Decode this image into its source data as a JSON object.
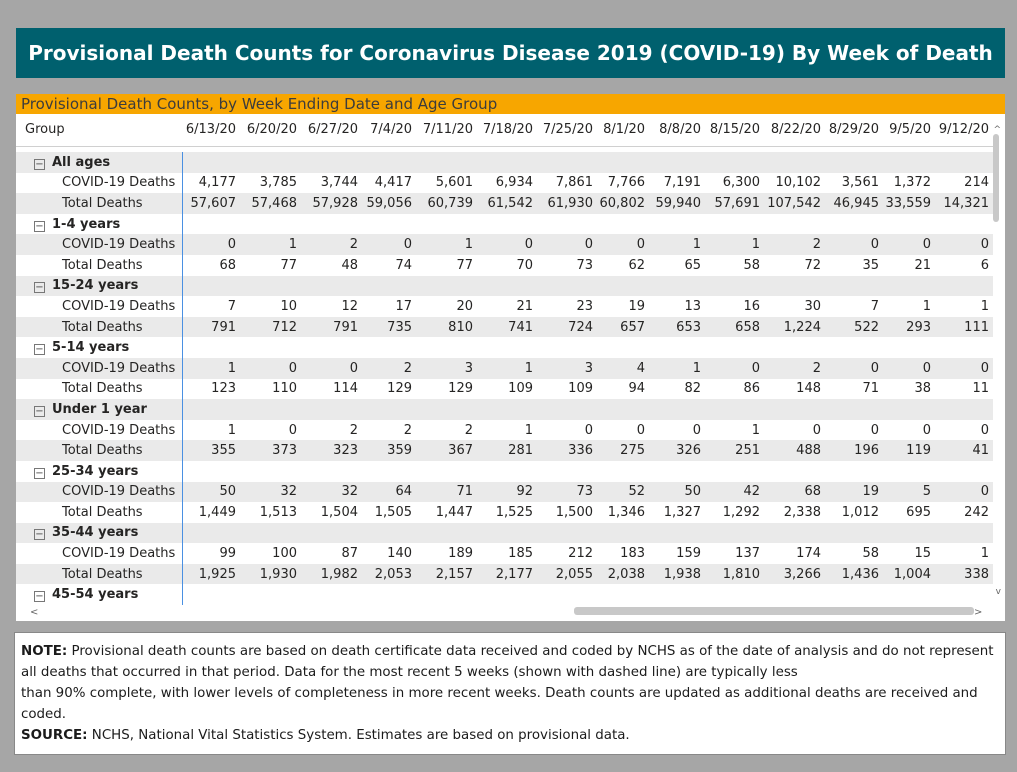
{
  "banner": {
    "title": "Provisional Death Counts for Coronavirus Disease 2019 (COVID-19) By Week of Death"
  },
  "panel": {
    "title": "Provisional Death Counts, by Week Ending Date and Age Group",
    "group_header": "Group",
    "weeks": [
      "6/13/20",
      "6/20/20",
      "6/27/20",
      "7/4/20",
      "7/11/20",
      "7/18/20",
      "7/25/20",
      "8/1/20",
      "8/8/20",
      "8/15/20",
      "8/22/20",
      "8/29/20",
      "9/5/20",
      "9/12/20"
    ],
    "groups": [
      {
        "name": "All ages",
        "toggle": "⊟",
        "rows": [
          {
            "label": "COVID-19 Deaths",
            "values": [
              "4,177",
              "3,785",
              "3,744",
              "4,417",
              "5,601",
              "6,934",
              "7,861",
              "7,766",
              "7,191",
              "6,300",
              "10,102",
              "3,561",
              "1,372",
              "214"
            ]
          },
          {
            "label": "Total Deaths",
            "values": [
              "57,607",
              "57,468",
              "57,928",
              "59,056",
              "60,739",
              "61,542",
              "61,930",
              "60,802",
              "59,940",
              "57,691",
              "107,542",
              "46,945",
              "33,559",
              "14,321"
            ]
          }
        ]
      },
      {
        "name": "1-4 years",
        "toggle": "⊟",
        "rows": [
          {
            "label": "COVID-19 Deaths",
            "values": [
              "0",
              "1",
              "2",
              "0",
              "1",
              "0",
              "0",
              "0",
              "1",
              "1",
              "2",
              "0",
              "0",
              "0"
            ]
          },
          {
            "label": "Total Deaths",
            "values": [
              "68",
              "77",
              "48",
              "74",
              "77",
              "70",
              "73",
              "62",
              "65",
              "58",
              "72",
              "35",
              "21",
              "6"
            ]
          }
        ]
      },
      {
        "name": "15-24 years",
        "toggle": "⊟",
        "rows": [
          {
            "label": "COVID-19 Deaths",
            "values": [
              "7",
              "10",
              "12",
              "17",
              "20",
              "21",
              "23",
              "19",
              "13",
              "16",
              "30",
              "7",
              "1",
              "1"
            ]
          },
          {
            "label": "Total Deaths",
            "values": [
              "791",
              "712",
              "791",
              "735",
              "810",
              "741",
              "724",
              "657",
              "653",
              "658",
              "1,224",
              "522",
              "293",
              "111"
            ]
          }
        ]
      },
      {
        "name": "5-14 years",
        "toggle": "⊟",
        "rows": [
          {
            "label": "COVID-19 Deaths",
            "values": [
              "1",
              "0",
              "0",
              "2",
              "3",
              "1",
              "3",
              "4",
              "1",
              "0",
              "2",
              "0",
              "0",
              "0"
            ]
          },
          {
            "label": "Total Deaths",
            "values": [
              "123",
              "110",
              "114",
              "129",
              "129",
              "109",
              "109",
              "94",
              "82",
              "86",
              "148",
              "71",
              "38",
              "11"
            ]
          }
        ]
      },
      {
        "name": "Under 1 year",
        "toggle": "⊟",
        "rows": [
          {
            "label": "COVID-19 Deaths",
            "values": [
              "1",
              "0",
              "2",
              "2",
              "2",
              "1",
              "0",
              "0",
              "0",
              "1",
              "0",
              "0",
              "0",
              "0"
            ]
          },
          {
            "label": "Total Deaths",
            "values": [
              "355",
              "373",
              "323",
              "359",
              "367",
              "281",
              "336",
              "275",
              "326",
              "251",
              "488",
              "196",
              "119",
              "41"
            ]
          }
        ]
      },
      {
        "name": "25-34 years",
        "toggle": "⊟",
        "rows": [
          {
            "label": "COVID-19 Deaths",
            "values": [
              "50",
              "32",
              "32",
              "64",
              "71",
              "92",
              "73",
              "52",
              "50",
              "42",
              "68",
              "19",
              "5",
              "0"
            ]
          },
          {
            "label": "Total Deaths",
            "values": [
              "1,449",
              "1,513",
              "1,504",
              "1,505",
              "1,447",
              "1,525",
              "1,500",
              "1,346",
              "1,327",
              "1,292",
              "2,338",
              "1,012",
              "695",
              "242"
            ]
          }
        ]
      },
      {
        "name": "35-44 years",
        "toggle": "⊟",
        "rows": [
          {
            "label": "COVID-19 Deaths",
            "values": [
              "99",
              "100",
              "87",
              "140",
              "189",
              "185",
              "212",
              "183",
              "159",
              "137",
              "174",
              "58",
              "15",
              "1"
            ]
          },
          {
            "label": "Total Deaths",
            "values": [
              "1,925",
              "1,930",
              "1,982",
              "2,053",
              "2,157",
              "2,177",
              "2,055",
              "2,038",
              "1,938",
              "1,810",
              "3,266",
              "1,436",
              "1,004",
              "338"
            ]
          }
        ]
      },
      {
        "name": "45-54 years",
        "toggle": "⊟",
        "rows": []
      }
    ],
    "scroll": {
      "up": "^",
      "down": "v",
      "left": "<",
      "right": ">"
    }
  },
  "note": {
    "note_label": "NOTE:",
    "note_text": " Provisional death counts are based on death certificate data received and coded by NCHS as of the date of analysis and do not represent all deaths that occurred in that period. Data for the most recent 5 weeks (shown with dashed line) are typically less",
    "note_text2": "than 90% complete, with lower levels of completeness in more recent weeks.  Death counts are updated as additional deaths are received and coded.",
    "source_label": "SOURCE:",
    "source_text": " NCHS, National Vital Statistics System. Estimates are based on provisional data."
  }
}
